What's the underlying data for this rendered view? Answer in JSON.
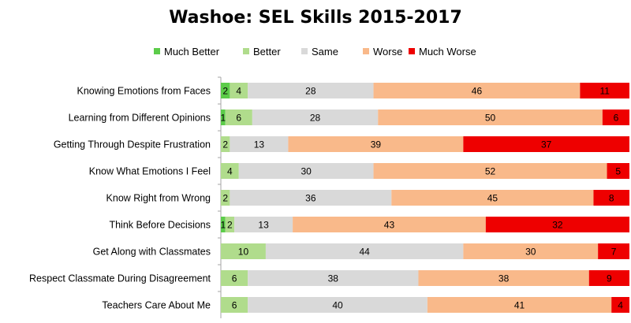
{
  "chart_data": {
    "type": "bar",
    "orientation": "horizontal",
    "stacked": "100%",
    "title": "Washoe: SEL Skills 2015-2017",
    "legend_position": "top",
    "grid": false,
    "categories": [
      "Knowing Emotions from Faces",
      "Learning from Different Opinions",
      "Getting Through Despite Frustration",
      "Know What Emotions I Feel",
      "Know Right from Wrong",
      "Think Before Decisions",
      "Get Along with Classmates",
      "Respect Classmate During Disagreement",
      "Teachers Care About Me"
    ],
    "series": [
      {
        "name": "Much Better",
        "color": "#5ccc4a",
        "values": [
          2,
          1,
          0,
          0,
          0,
          1,
          0,
          0,
          0
        ]
      },
      {
        "name": "Better",
        "color": "#b0dc8c",
        "values": [
          4,
          6,
          2,
          4,
          2,
          2,
          10,
          6,
          6
        ]
      },
      {
        "name": "Same",
        "color": "#d9d9d9",
        "values": [
          28,
          28,
          13,
          30,
          36,
          13,
          44,
          38,
          40
        ]
      },
      {
        "name": "Worse",
        "color": "#f9b98a",
        "values": [
          46,
          50,
          39,
          52,
          45,
          43,
          30,
          38,
          41
        ]
      },
      {
        "name": "Much Worse",
        "color": "#ee0000",
        "values": [
          11,
          6,
          37,
          5,
          8,
          32,
          7,
          9,
          4
        ]
      }
    ]
  }
}
